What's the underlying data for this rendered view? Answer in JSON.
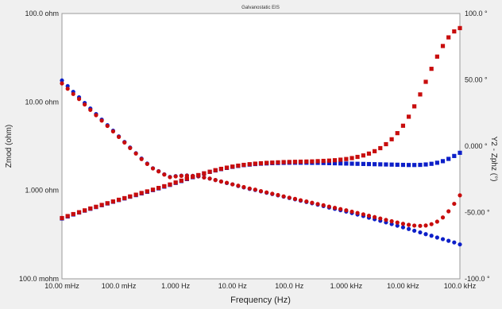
{
  "chart_data": {
    "type": "scatter",
    "title": "Galvanostatic EIS",
    "xlabel": "Frequency (Hz)",
    "ylabel": "Zmod (ohm)",
    "y2label": "Y2 - Zphz (°)",
    "x_scale": "log",
    "y_scale": "log",
    "xlim": [
      0.01,
      100000
    ],
    "ylim": [
      0.1,
      100
    ],
    "y2lim": [
      -100,
      100
    ],
    "x_ticks": [
      0.01,
      0.1,
      1,
      10,
      100,
      1000,
      10000,
      100000
    ],
    "x_tick_labels": [
      "10.00 mHz",
      "100.0 mHz",
      "1.000 Hz",
      "10.00 Hz",
      "100.0 Hz",
      "1.000 kHz",
      "10.00 kHz",
      "100.0 kHz"
    ],
    "y_ticks": [
      0.1,
      1,
      10,
      100
    ],
    "y_tick_labels": [
      "100.0 mohm",
      "1.000 ohm",
      "10.00 ohm",
      "100.0 ohm"
    ],
    "y2_ticks": [
      -100,
      -50,
      0,
      50,
      100
    ],
    "y2_tick_labels": [
      "-100.0 °",
      "-50.00 °",
      "0.000 °",
      "50.00 °",
      "100.0 °"
    ],
    "grid": false,
    "legend": "none",
    "colors": {
      "blue": "#0d1fc8",
      "red": "#c80d0d"
    },
    "series": [
      {
        "axis": "y",
        "marker": "circle",
        "color": "blue",
        "x": [
          0.01,
          0.0126,
          0.0158,
          0.02,
          0.0251,
          0.0316,
          0.0398,
          0.0501,
          0.0631,
          0.0794,
          0.1,
          0.126,
          0.158,
          0.2,
          0.251,
          0.316,
          0.398,
          0.501,
          0.631,
          0.794,
          1,
          1.26,
          1.58,
          2,
          2.51,
          3.16,
          3.98,
          5.01,
          6.31,
          7.94,
          10,
          12.6,
          15.8,
          20,
          25.1,
          31.6,
          39.8,
          50.1,
          63.1,
          79.4,
          100,
          126,
          158,
          200,
          251,
          316,
          398,
          501,
          631,
          794,
          1000,
          1260,
          1580,
          2000,
          2510,
          3160,
          3980,
          5010,
          6310,
          7940,
          10000,
          12600,
          15800,
          20000,
          25100,
          31600,
          39800,
          50100,
          63100,
          79400,
          100000
        ],
        "y": [
          17.5,
          15.1,
          13.0,
          11.3,
          9.74,
          8.43,
          7.29,
          6.31,
          5.46,
          4.73,
          4.08,
          3.53,
          3.05,
          2.63,
          2.29,
          2.01,
          1.78,
          1.65,
          1.52,
          1.42,
          1.45,
          1.47,
          1.475,
          1.46,
          1.44,
          1.4,
          1.36,
          1.31,
          1.26,
          1.21,
          1.17,
          1.12,
          1.08,
          1.04,
          1.01,
          0.974,
          0.94,
          0.909,
          0.878,
          0.849,
          0.82,
          0.792,
          0.765,
          0.74,
          0.715,
          0.689,
          0.665,
          0.639,
          0.618,
          0.597,
          0.576,
          0.554,
          0.533,
          0.513,
          0.491,
          0.472,
          0.453,
          0.435,
          0.416,
          0.399,
          0.382,
          0.366,
          0.35,
          0.335,
          0.32,
          0.307,
          0.293,
          0.281,
          0.269,
          0.258,
          0.245
        ]
      },
      {
        "axis": "y",
        "marker": "circle",
        "color": "red",
        "x": [
          0.01,
          0.0126,
          0.0158,
          0.02,
          0.0251,
          0.0316,
          0.0398,
          0.0501,
          0.0631,
          0.0794,
          0.1,
          0.126,
          0.158,
          0.2,
          0.251,
          0.316,
          0.398,
          0.501,
          0.631,
          0.794,
          1,
          1.26,
          1.58,
          2,
          2.51,
          3.16,
          3.98,
          5.01,
          6.31,
          7.94,
          10,
          12.6,
          15.8,
          20,
          25.1,
          31.6,
          39.8,
          50.1,
          63.1,
          79.4,
          100,
          126,
          158,
          200,
          251,
          316,
          398,
          501,
          631,
          794,
          1000,
          1260,
          1580,
          2000,
          2510,
          3160,
          3980,
          5010,
          6310,
          7940,
          10000,
          12600,
          15800,
          20000,
          25100,
          31600,
          39800,
          50100,
          63100,
          79400,
          100000
        ],
        "y": [
          16.2,
          14.1,
          12.3,
          10.8,
          9.35,
          8.13,
          7.08,
          6.15,
          5.35,
          4.64,
          4.02,
          3.48,
          3.01,
          2.61,
          2.26,
          1.99,
          1.77,
          1.64,
          1.51,
          1.41,
          1.44,
          1.46,
          1.47,
          1.455,
          1.44,
          1.4,
          1.36,
          1.31,
          1.26,
          1.22,
          1.17,
          1.13,
          1.09,
          1.05,
          1.02,
          0.982,
          0.949,
          0.916,
          0.886,
          0.856,
          0.828,
          0.801,
          0.774,
          0.749,
          0.725,
          0.701,
          0.679,
          0.656,
          0.635,
          0.615,
          0.595,
          0.575,
          0.555,
          0.536,
          0.517,
          0.499,
          0.481,
          0.464,
          0.448,
          0.433,
          0.419,
          0.408,
          0.4,
          0.397,
          0.401,
          0.415,
          0.443,
          0.494,
          0.58,
          0.705,
          0.88
        ]
      },
      {
        "axis": "y2",
        "marker": "square",
        "color": "blue",
        "x": [
          0.01,
          0.0126,
          0.0158,
          0.02,
          0.0251,
          0.0316,
          0.0398,
          0.0501,
          0.0631,
          0.0794,
          0.1,
          0.126,
          0.158,
          0.2,
          0.251,
          0.316,
          0.398,
          0.501,
          0.631,
          0.794,
          1,
          1.26,
          1.58,
          2,
          2.51,
          3.16,
          3.98,
          5.01,
          6.31,
          7.94,
          10,
          12.6,
          15.8,
          20,
          25.1,
          31.6,
          39.8,
          50.1,
          63.1,
          79.4,
          100,
          126,
          158,
          200,
          251,
          316,
          398,
          501,
          631,
          794,
          1000,
          1260,
          1580,
          2000,
          2510,
          3160,
          3980,
          5010,
          6310,
          7940,
          10000,
          12600,
          15800,
          20000,
          25100,
          31600,
          39800,
          50100,
          63100,
          79400,
          100000
        ],
        "y": [
          -54.5,
          -53.0,
          -51.5,
          -50.0,
          -48.6,
          -47.2,
          -45.9,
          -44.5,
          -43.2,
          -41.9,
          -40.6,
          -39.4,
          -38.1,
          -36.9,
          -35.6,
          -34.4,
          -33.1,
          -31.8,
          -30.5,
          -29.2,
          -27.7,
          -26.3,
          -24.8,
          -23.4,
          -22.0,
          -20.6,
          -19.4,
          -18.3,
          -17.3,
          -16.4,
          -15.6,
          -14.9,
          -14.3,
          -13.9,
          -13.5,
          -13.2,
          -13.0,
          -12.8,
          -12.7,
          -12.6,
          -12.5,
          -12.5,
          -12.5,
          -12.5,
          -12.6,
          -12.6,
          -12.7,
          -12.8,
          -12.9,
          -13.0,
          -13.1,
          -13.2,
          -13.3,
          -13.4,
          -13.5,
          -13.6,
          -13.7,
          -13.8,
          -13.9,
          -14.0,
          -14.1,
          -14.2,
          -14.2,
          -14.1,
          -13.8,
          -13.3,
          -12.5,
          -11.3,
          -9.6,
          -7.4,
          -5.0
        ]
      },
      {
        "axis": "y2",
        "marker": "square",
        "color": "red",
        "x": [
          0.01,
          0.0126,
          0.0158,
          0.02,
          0.0251,
          0.0316,
          0.0398,
          0.0501,
          0.0631,
          0.0794,
          0.1,
          0.126,
          0.158,
          0.2,
          0.251,
          0.316,
          0.398,
          0.501,
          0.631,
          0.794,
          1,
          1.26,
          1.58,
          2,
          2.51,
          3.16,
          3.98,
          5.01,
          6.31,
          7.94,
          10,
          12.6,
          15.8,
          20,
          25.1,
          31.6,
          39.8,
          50.1,
          63.1,
          79.4,
          100,
          126,
          158,
          200,
          251,
          316,
          398,
          501,
          631,
          794,
          1000,
          1260,
          1580,
          2000,
          2510,
          3160,
          3980,
          5010,
          6310,
          7940,
          10000,
          12600,
          15800,
          20000,
          25100,
          31600,
          39800,
          50100,
          63100,
          79400,
          100000
        ],
        "y": [
          -54.2,
          -52.7,
          -51.2,
          -49.8,
          -48.4,
          -47.0,
          -45.7,
          -44.3,
          -43.0,
          -41.7,
          -40.4,
          -39.2,
          -37.9,
          -36.6,
          -35.3,
          -34.1,
          -32.8,
          -31.5,
          -30.2,
          -28.9,
          -27.4,
          -26.0,
          -24.5,
          -23.1,
          -21.8,
          -20.5,
          -19.3,
          -18.1,
          -17.1,
          -16.2,
          -15.4,
          -14.7,
          -14.1,
          -13.6,
          -13.2,
          -12.9,
          -12.6,
          -12.4,
          -12.2,
          -12.0,
          -11.9,
          -11.8,
          -11.7,
          -11.6,
          -11.5,
          -11.3,
          -11.1,
          -10.9,
          -10.6,
          -10.2,
          -9.7,
          -9.0,
          -8.1,
          -7.0,
          -5.6,
          -3.8,
          -1.5,
          1.5,
          5.2,
          9.8,
          15.4,
          22.2,
          30.0,
          39.0,
          48.5,
          58.3,
          67.5,
          75.5,
          82.0,
          86.5,
          89.0
        ]
      }
    ]
  }
}
